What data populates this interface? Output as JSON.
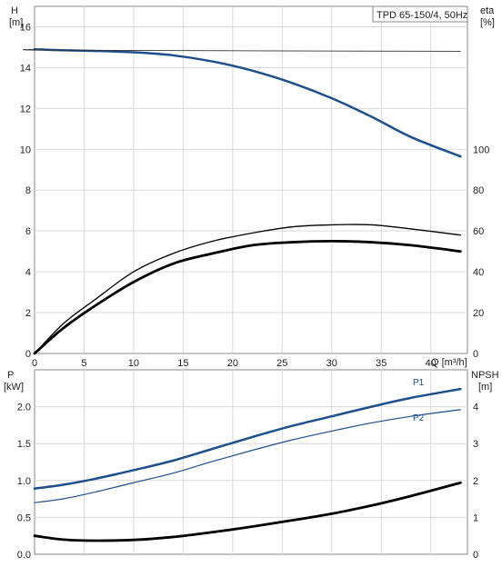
{
  "chart_data": [
    {
      "type": "line",
      "title": "TPD 65-150/4, 50Hz",
      "x_label": "Q [m³/h]",
      "x_ticks": [
        "0",
        "5",
        "10",
        "15",
        "20",
        "25",
        "30",
        "35",
        "40"
      ],
      "xlim": [
        0,
        43.7
      ],
      "y_axes": [
        {
          "label": "H",
          "unit": "[m]",
          "side": "left",
          "ylim": [
            0,
            17
          ],
          "ticks": [
            "0",
            "2",
            "4",
            "6",
            "8",
            "10",
            "12",
            "14",
            "16"
          ]
        },
        {
          "label": "eta",
          "unit": "[%]",
          "side": "right",
          "ylim": [
            0,
            170
          ],
          "ticks": [
            "0",
            "20",
            "40",
            "60",
            "80",
            "100"
          ]
        }
      ],
      "grid": true,
      "series": [
        {
          "axis": "left",
          "color": "#1c4f8c",
          "stroke": 2.5,
          "x": [
            0,
            2.8,
            6,
            10,
            14,
            18,
            22,
            26,
            30,
            34,
            38,
            43
          ],
          "y": [
            14.9,
            14.85,
            14.82,
            14.75,
            14.6,
            14.3,
            13.85,
            13.25,
            12.5,
            11.6,
            10.6,
            9.65
          ]
        },
        {
          "axis": "left",
          "color": "#333333",
          "stroke": 0.9,
          "x": [
            0,
            2.8,
            43
          ],
          "y": [
            14.9,
            14.85,
            14.8
          ]
        },
        {
          "axis": "right",
          "color": "#000000",
          "stroke": 1.3,
          "x": [
            0,
            3,
            6,
            10,
            14,
            18,
            22,
            26,
            30,
            34,
            38,
            43
          ],
          "y": [
            0,
            15,
            26,
            40,
            49,
            55,
            59,
            62,
            63,
            63,
            61,
            58
          ]
        },
        {
          "axis": "right",
          "color": "#000000",
          "stroke": 2.8,
          "x": [
            0,
            2.8,
            6,
            10,
            14,
            18,
            22,
            26,
            30,
            34,
            38,
            43
          ],
          "y": [
            0,
            12,
            23,
            35,
            44,
            49,
            53,
            54.5,
            55,
            54.5,
            53,
            50
          ]
        }
      ]
    },
    {
      "type": "line",
      "x_label": "",
      "xlim": [
        0,
        43.7
      ],
      "y_axes": [
        {
          "label": "P",
          "unit": "[kW]",
          "side": "left",
          "ylim": [
            0,
            2.5
          ],
          "ticks": [
            "0.0",
            "0.5",
            "1.0",
            "1.5",
            "2.0"
          ]
        },
        {
          "label": "NPSH",
          "unit": "[m]",
          "side": "right",
          "ylim": [
            0,
            5
          ],
          "ticks": [
            "0",
            "1",
            "2",
            "3",
            "4"
          ]
        }
      ],
      "grid": true,
      "series": [
        {
          "name": "P1",
          "axis": "left",
          "color": "#1c4f8c",
          "stroke": 2.5,
          "x": [
            0,
            2.8,
            6,
            10,
            14,
            18,
            22,
            26,
            30,
            34,
            38,
            43
          ],
          "y": [
            0.89,
            0.94,
            1.02,
            1.14,
            1.27,
            1.43,
            1.59,
            1.74,
            1.87,
            2.0,
            2.12,
            2.24
          ]
        },
        {
          "name": "P2",
          "axis": "left",
          "color": "#1c4f8c",
          "stroke": 1.2,
          "x": [
            0,
            2.8,
            6,
            10,
            14,
            18,
            22,
            26,
            30,
            34,
            38,
            43
          ],
          "y": [
            0.7,
            0.75,
            0.84,
            0.97,
            1.1,
            1.26,
            1.41,
            1.55,
            1.67,
            1.78,
            1.87,
            1.96
          ]
        },
        {
          "axis": "right",
          "color": "#000000",
          "stroke": 2.8,
          "x": [
            0,
            2.8,
            6,
            10,
            14,
            18,
            22,
            26,
            30,
            34,
            38,
            43
          ],
          "y": [
            0.5,
            0.4,
            0.37,
            0.39,
            0.47,
            0.6,
            0.75,
            0.92,
            1.1,
            1.32,
            1.58,
            1.94
          ]
        }
      ]
    }
  ]
}
